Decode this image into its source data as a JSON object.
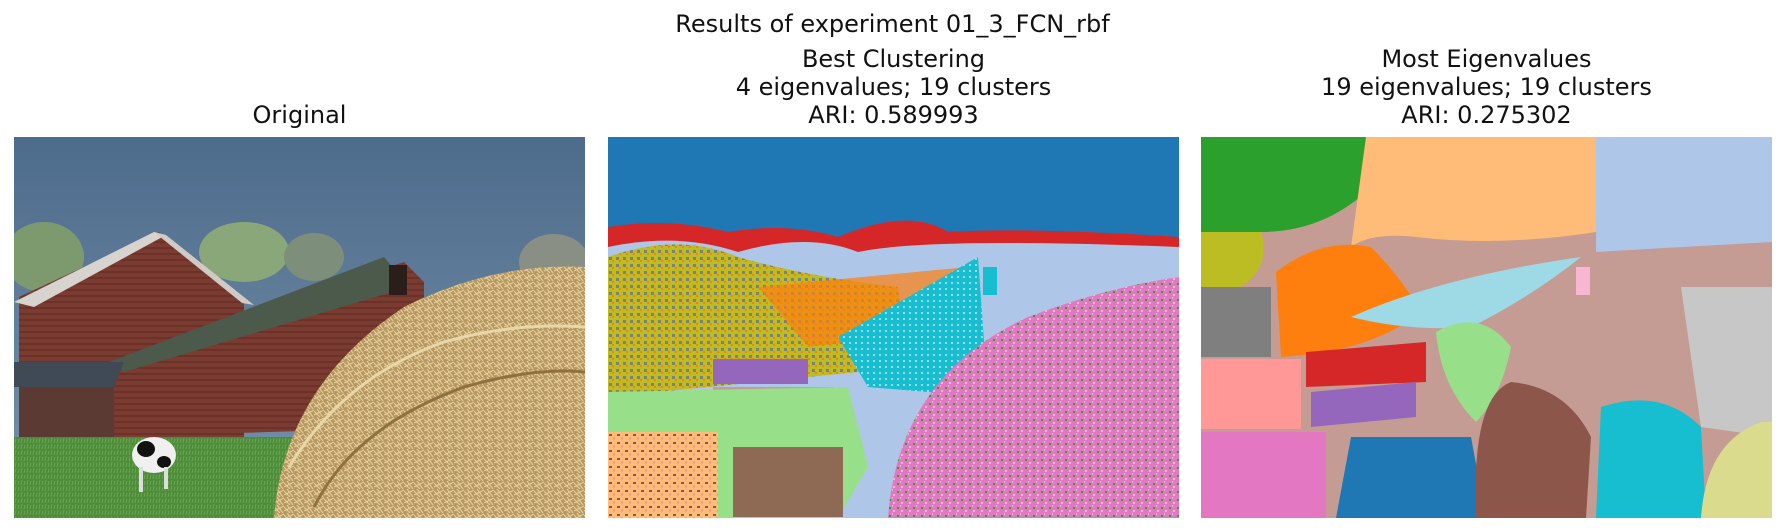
{
  "figure": {
    "suptitle": "Results of experiment 01_3_FCN_rbf",
    "panels": [
      {
        "title_lines": [
          "Original"
        ]
      },
      {
        "title_lines": [
          "Best Clustering",
          "4 eigenvalues; 19 clusters",
          "ARI: 0.589993"
        ]
      },
      {
        "title_lines": [
          "Most Eigenvalues",
          "19 eigenvalues; 19 clusters",
          "ARI: 0.275302"
        ]
      }
    ]
  },
  "colors": {
    "sky": "#50708e",
    "grass": "#4a8a3a",
    "barn": "#7a3a30",
    "roof": "#4b5a4a",
    "hay": "#c9aa70",
    "tab_blue": "#1f77b4",
    "tab_orange": "#ff7f0e",
    "tab_green": "#2ca02c",
    "tab_red": "#d62728",
    "tab_purple": "#9467bd",
    "tab_brown": "#8c564b",
    "tab_pink": "#e377c2",
    "tab_gray": "#7f7f7f",
    "tab_olive": "#bcbd22",
    "tab_cyan": "#17becf",
    "light_blue": "#aec7e8",
    "light_orange": "#ffbb78",
    "light_green": "#98df8a",
    "light_red": "#ff9896",
    "light_purple": "#c5b0d5",
    "light_brown": "#c49c94",
    "light_pink": "#f7b6d2",
    "light_gray": "#c7c7c7",
    "light_olive": "#dbdb8d",
    "light_cyan": "#9edae5"
  }
}
